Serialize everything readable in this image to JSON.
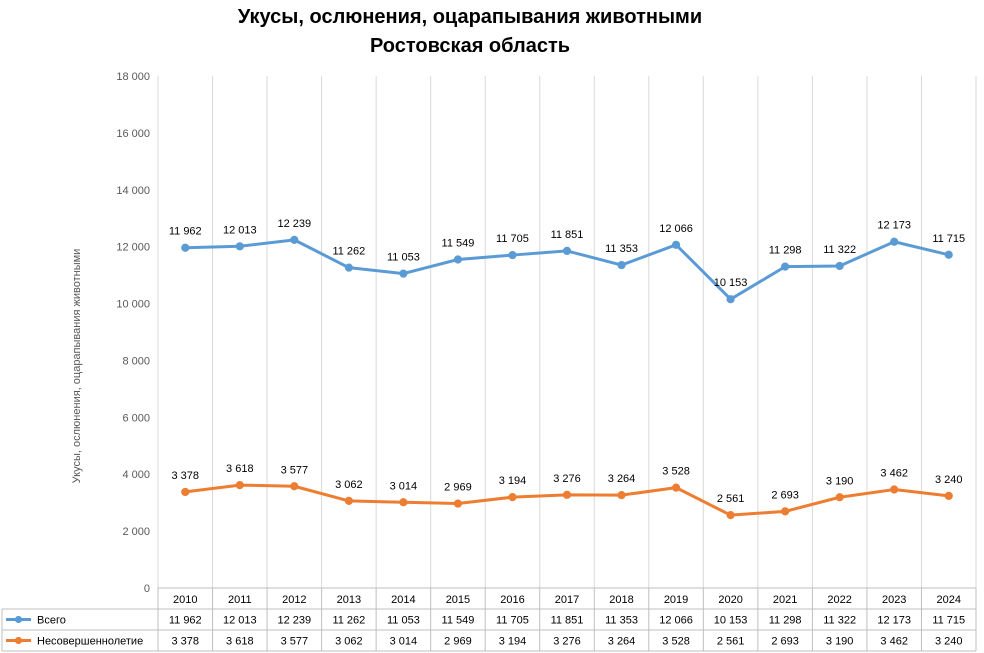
{
  "chart_data": {
    "type": "line",
    "title": "Укусы, ослюнения, оцарапывания животными",
    "subtitle": "Ростовская область",
    "ylabel": "Укусы, ослюнения, оцарапывания животными",
    "xlabel": "",
    "ylim": [
      0,
      18000
    ],
    "yticks": [
      0,
      2000,
      4000,
      6000,
      8000,
      10000,
      12000,
      14000,
      16000,
      18000
    ],
    "ytick_labels": [
      "0",
      "2 000",
      "4 000",
      "6 000",
      "8 000",
      "10 000",
      "12 000",
      "14 000",
      "16 000",
      "18 000"
    ],
    "grid": "vertical",
    "legend": "data-table",
    "categories": [
      "2010",
      "2011",
      "2012",
      "2013",
      "2014",
      "2015",
      "2016",
      "2017",
      "2018",
      "2019",
      "2020",
      "2021",
      "2022",
      "2023",
      "2024"
    ],
    "series": [
      {
        "name": "Всего",
        "color": "#5b9bd5",
        "values": [
          11962,
          12013,
          12239,
          11262,
          11053,
          11549,
          11705,
          11851,
          11353,
          12066,
          10153,
          11298,
          11322,
          12173,
          11715
        ],
        "labels": [
          "11 962",
          "12 013",
          "12 239",
          "11 262",
          "11 053",
          "11 549",
          "11 705",
          "11 851",
          "11 353",
          "12 066",
          "10 153",
          "11 298",
          "11 322",
          "12 173",
          "11 715"
        ]
      },
      {
        "name": "Несовершеннолетие",
        "color": "#ed7d31",
        "values": [
          3378,
          3618,
          3577,
          3062,
          3014,
          2969,
          3194,
          3276,
          3264,
          3528,
          2561,
          2693,
          3190,
          3462,
          3240
        ],
        "labels": [
          "3 378",
          "3 618",
          "3 577",
          "3 062",
          "3 014",
          "2 969",
          "3 194",
          "3 276",
          "3 264",
          "3 528",
          "2 561",
          "2 693",
          "3 190",
          "3 462",
          "3 240"
        ]
      }
    ]
  }
}
